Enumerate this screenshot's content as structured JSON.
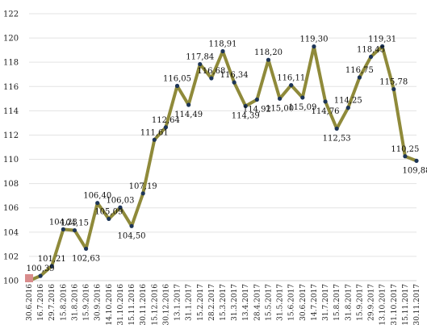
{
  "chart_data": {
    "type": "line",
    "title": "",
    "xlabel": "",
    "ylabel": "",
    "ylim": [
      100,
      122
    ],
    "yticks": [
      100,
      102,
      104,
      106,
      108,
      110,
      112,
      114,
      116,
      118,
      120,
      122
    ],
    "grid": true,
    "legend": "none",
    "categories": [
      "30.6.2016",
      "16.7.2016",
      "29.7.2016",
      "15.8.2016",
      "31.8.2016",
      "15.9.2016",
      "30.9.2016",
      "14.10.2016",
      "31.10.2016",
      "15.11.2016",
      "30.11.2016",
      "15.12.2016",
      "30.12.2016",
      "13.1.2017",
      "31.1.2017",
      "15.2.2017",
      "28.2.2017",
      "15.3.2017",
      "31.3.2017",
      "13.4.2017",
      "28.4.2017",
      "15.5.2017",
      "31.5.2017",
      "15.6.2017",
      "30.6.2017",
      "14.7.2017",
      "31.7.2017",
      "15.8.2017",
      "31.8.2017",
      "15.9.2017",
      "29.9.2017",
      "13.10.2017",
      "31.10.2017",
      "15.11.2017",
      "30.11.2017"
    ],
    "values": [
      100.0,
      100.39,
      101.21,
      104.23,
      104.15,
      102.63,
      106.4,
      105.09,
      106.03,
      104.5,
      107.19,
      111.61,
      112.64,
      116.05,
      114.49,
      117.84,
      116.68,
      118.91,
      116.34,
      114.39,
      114.92,
      118.2,
      115.0,
      116.11,
      115.09,
      119.3,
      114.76,
      112.53,
      114.25,
      116.75,
      118.45,
      119.31,
      115.78,
      110.25,
      109.88
    ],
    "data_labels": [
      "",
      "100,39",
      "101,21",
      "104,23",
      "104,15",
      "102,63",
      "106,40",
      "105,09",
      "106,03",
      "104,50",
      "107,19",
      "111,61",
      "112,64",
      "116,05",
      "114,49",
      "117,84",
      "116,68",
      "118,91",
      "116,34",
      "114,39",
      "114,92",
      "118,20",
      "115,00",
      "116,11",
      "115,09",
      "119,30",
      "114,76",
      "112,53",
      "114,25",
      "116,75",
      "118,45",
      "119,31",
      "115,78",
      "110,25",
      "109,88"
    ],
    "colors": {
      "line": "#8f8a3a",
      "marker": "#1d3557",
      "first_marker": "#d98c8c"
    }
  }
}
